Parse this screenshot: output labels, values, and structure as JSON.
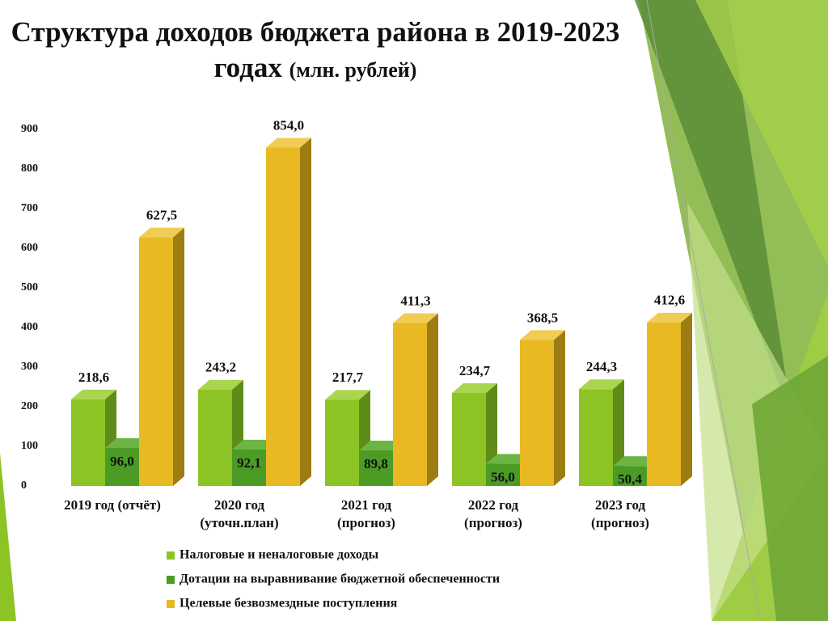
{
  "chart_data": {
    "type": "bar3d",
    "title": "Структура доходов бюджета района в 2019-2023 годах",
    "subtitle": "(млн. рублей)",
    "categories": [
      "2019 год (отчёт)",
      "2020 год\n(уточн.план)",
      "2021 год\n(прогноз)",
      "2022 год\n(прогноз)",
      "2023 год\n(прогноз)"
    ],
    "series": [
      {
        "name": "Налоговые и неналоговые доходы",
        "color": "#8cc425",
        "side": "#5f8c17",
        "top": "#a9d64e",
        "values": [
          218.6,
          243.2,
          217.7,
          234.7,
          244.3
        ],
        "value_labels": [
          "218,6",
          "243,2",
          "217,7",
          "234,7",
          "244,3"
        ]
      },
      {
        "name": "Дотации на выравнивание бюджетной обеспеченности",
        "color": "#4b9b25",
        "side": "#2e6a14",
        "top": "#6cb443",
        "values": [
          96.0,
          92.1,
          89.8,
          56.0,
          50.4
        ],
        "value_labels": [
          "96,0",
          "92,1",
          "89,8",
          "56,0",
          "50,4"
        ]
      },
      {
        "name": "Целевые безвозмездные поступления",
        "color": "#e9b924",
        "side": "#9d7c12",
        "top": "#f1cc55",
        "values": [
          627.5,
          854.0,
          411.3,
          368.5,
          412.6
        ],
        "value_labels": [
          "627,5",
          "854,0",
          "411,3",
          "368,5",
          "412,6"
        ]
      }
    ],
    "ylim": [
      0,
      900
    ],
    "yticks": [
      0,
      100,
      200,
      300,
      400,
      500,
      600,
      700,
      800,
      900
    ],
    "grid": false,
    "legend": "bottom"
  }
}
